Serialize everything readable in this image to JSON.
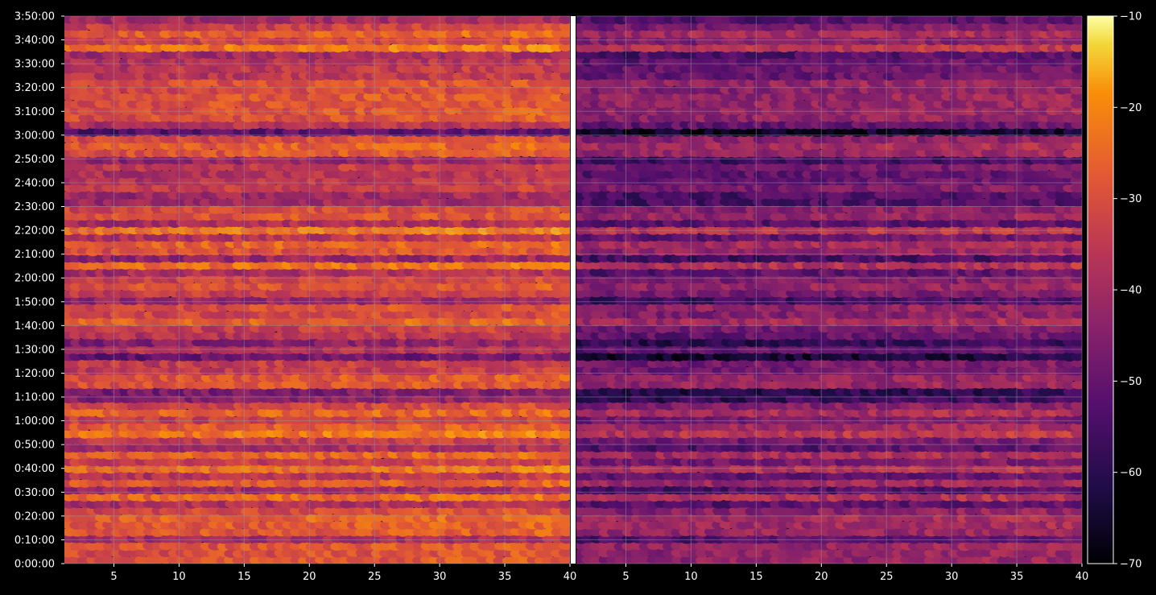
{
  "chart_data": {
    "type": "heatmap",
    "title": "",
    "xlabel": "",
    "ylabel": "",
    "panels": [
      {
        "name": "",
        "xlim": [
          1.2,
          40
        ],
        "xticks": [
          5,
          10,
          15,
          20,
          25,
          30,
          35,
          40
        ],
        "xtick_labels": [
          "5",
          "10",
          "15",
          "20",
          "25",
          "30",
          "35",
          "40"
        ]
      },
      {
        "name": "",
        "xlim": [
          1.2,
          40
        ],
        "xticks": [
          5,
          10,
          15,
          20,
          25,
          30,
          35,
          40
        ],
        "xtick_labels": [
          "5",
          "10",
          "15",
          "20",
          "25",
          "30",
          "35",
          "40"
        ]
      }
    ],
    "ylim_seconds": [
      0,
      13800
    ],
    "yticks_seconds": [
      0,
      600,
      1200,
      1800,
      2400,
      3000,
      3600,
      4200,
      4800,
      5400,
      6000,
      6600,
      7200,
      7800,
      8400,
      9000,
      9600,
      10200,
      10800,
      11400,
      12000,
      12600,
      13200,
      13800
    ],
    "ytick_labels": [
      "0:00:00",
      "0:10:00",
      "0:20:00",
      "0:30:00",
      "0:40:00",
      "0:50:00",
      "1:00:00",
      "1:10:00",
      "1:20:00",
      "1:30:00",
      "1:40:00",
      "1:50:00",
      "2:00:00",
      "2:10:00",
      "2:20:00",
      "2:30:00",
      "2:40:00",
      "2:50:00",
      "3:00:00",
      "3:10:00",
      "3:20:00",
      "3:30:00",
      "3:40:00",
      "3:50:00"
    ],
    "colorbar": {
      "colormap": "inferno",
      "range": [
        -70,
        -10
      ],
      "ticks": [
        -10,
        -20,
        -30,
        -40,
        -50,
        -60,
        -70
      ],
      "tick_labels": [
        "−10",
        "−20",
        "−30",
        "−40",
        "−50",
        "−60",
        "−70"
      ]
    },
    "grid": true,
    "notes": "Dense scatter of elliptical markers on a per-row band structure; right panel is ~12 dB darker than left."
  },
  "colors": {
    "background": "#000000",
    "grid": "#9a9aa8",
    "text": "#ffffff",
    "separator": "#ffffff"
  }
}
